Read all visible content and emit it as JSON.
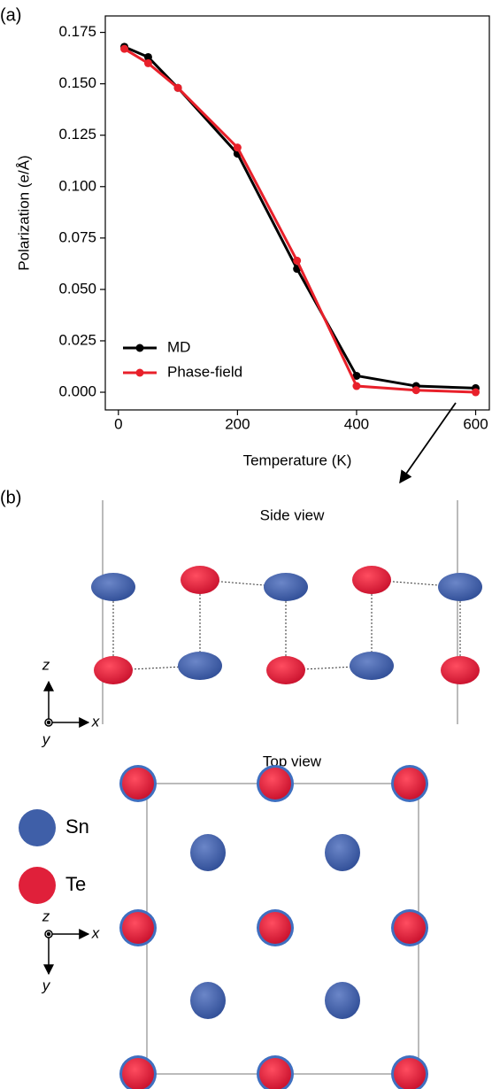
{
  "panels": {
    "a": "(a)",
    "b": "(b)"
  },
  "chart_data": {
    "type": "line",
    "xlabel": "Temperature (K)",
    "ylabel": "Polarization (e/Å)",
    "x": [
      10,
      50,
      100,
      200,
      300,
      400,
      500,
      600
    ],
    "series": [
      {
        "name": "MD",
        "color": "#000000",
        "values": [
          0.168,
          0.163,
          0.148,
          0.116,
          0.06,
          0.008,
          0.003,
          0.002
        ]
      },
      {
        "name": "Phase-field",
        "color": "#e8202a",
        "values": [
          0.167,
          0.16,
          0.148,
          0.119,
          0.064,
          0.003,
          0.001,
          0.0
        ]
      }
    ],
    "xlim": [
      -22,
      623
    ],
    "ylim": [
      -0.0086,
      0.183
    ],
    "xticks": [
      0,
      200,
      400,
      600
    ],
    "yticks": [
      {
        "value": 0,
        "label": "0.000"
      },
      0.025,
      {
        "value": 0.05,
        "label": "0.050"
      },
      0.075,
      {
        "value": 0.1,
        "label": "0.100"
      },
      0.125,
      {
        "value": 0.15,
        "label": "0.150"
      },
      0.175
    ],
    "grid": false,
    "legend": "lower left"
  },
  "diagram": {
    "side_view": {
      "title": "Side view"
    },
    "top_view": {
      "title": "Top view"
    },
    "legend": [
      {
        "label": "Sn",
        "color": "#3f5fa8"
      },
      {
        "label": "Te",
        "color": "#e0203a"
      }
    ],
    "side_axes": {
      "z": "z",
      "x": "x",
      "y": "y"
    },
    "top_axes": {
      "z": "z",
      "x": "x",
      "y": "y"
    }
  }
}
